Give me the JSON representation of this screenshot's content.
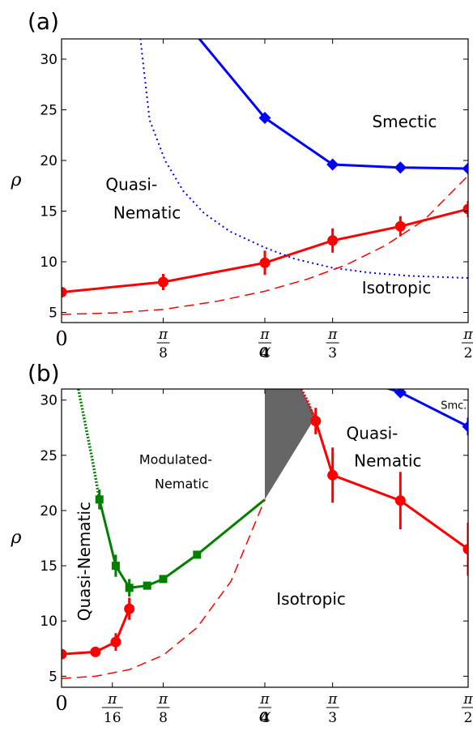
{
  "chart_data": [
    {
      "panel_label": "(a)",
      "type": "line",
      "xlabel": "α",
      "ylabel": "ρ",
      "xlim": [
        0,
        1.5708
      ],
      "ylim": [
        4,
        32
      ],
      "grid": false,
      "xticks": [
        {
          "value": 0,
          "label": "0"
        },
        {
          "value": 0.3927,
          "num": "π",
          "den": "8"
        },
        {
          "value": 0.7854,
          "num": "π",
          "den": "4"
        },
        {
          "value": 1.0472,
          "num": "π",
          "den": "3"
        },
        {
          "value": 1.5708,
          "num": "π",
          "den": "2"
        }
      ],
      "yticks": [
        5,
        10,
        15,
        20,
        25,
        30
      ],
      "series": [
        {
          "color": "#0000ff",
          "style": "solid",
          "marker": "diamond",
          "x": [
            0.5,
            0.7854,
            1.0472,
            1.309,
            1.5708
          ],
          "y": [
            33,
            24.2,
            19.6,
            19.3,
            19.2
          ],
          "marker_start": 1
        },
        {
          "color": "#ff0000",
          "style": "solid",
          "marker": "circle",
          "x": [
            0,
            0.3927,
            0.7854,
            1.0472,
            1.309,
            1.5708
          ],
          "y": [
            7.0,
            8.0,
            9.9,
            12.1,
            13.5,
            15.2
          ],
          "err": [
            0.3,
            0.8,
            1.2,
            1.2,
            1.0,
            0.8
          ]
        },
        {
          "color": "#0000ff",
          "style": "dotted",
          "marker": "none",
          "x": [
            0.3,
            0.34,
            0.4,
            0.47,
            0.55,
            0.65,
            0.7854,
            0.9,
            1.0472,
            1.2,
            1.35,
            1.5708
          ],
          "y": [
            33,
            24,
            20,
            17,
            14.8,
            13,
            11.4,
            10.3,
            9.4,
            8.9,
            8.6,
            8.4
          ]
        },
        {
          "color": "#ff0000",
          "style": "dashed",
          "marker": "none",
          "x": [
            0,
            0.2,
            0.3927,
            0.6,
            0.7854,
            0.95,
            1.1,
            1.25,
            1.4,
            1.5708
          ],
          "y": [
            4.8,
            4.95,
            5.3,
            6.1,
            7.1,
            8.3,
            9.7,
            11.6,
            14.1,
            18.5
          ]
        }
      ],
      "annotations": [
        {
          "text": "Smectic",
          "x": 1.2,
          "y": 23.3,
          "size": "region"
        },
        {
          "text": "Quasi-",
          "x": 0.17,
          "y": 17.1,
          "size": "region"
        },
        {
          "text": "Nematic",
          "x": 0.2,
          "y": 14.3,
          "size": "region"
        },
        {
          "text": "Isotropic",
          "x": 1.16,
          "y": 6.9,
          "size": "region"
        }
      ]
    },
    {
      "panel_label": "(b)",
      "type": "line",
      "xlabel": "α",
      "ylabel": "ρ",
      "xlim": [
        0,
        1.5708
      ],
      "ylim": [
        4,
        31
      ],
      "grid": false,
      "xticks": [
        {
          "value": 0,
          "label": "0"
        },
        {
          "value": 0.19635,
          "num": "π",
          "den": "16"
        },
        {
          "value": 0.3927,
          "num": "π",
          "den": "8"
        },
        {
          "value": 0.7854,
          "num": "π",
          "den": "4"
        },
        {
          "value": 1.0472,
          "num": "π",
          "den": "3"
        },
        {
          "value": 1.5708,
          "num": "π",
          "den": "2"
        }
      ],
      "yticks": [
        5,
        10,
        15,
        20,
        25,
        30
      ],
      "shaded_region": {
        "color": "#666666",
        "points": [
          [
            0.7854,
            31
          ],
          [
            0.9268,
            31
          ],
          [
            0.9818,
            28.5
          ],
          [
            0.7854,
            21
          ]
        ]
      },
      "series": [
        {
          "color": "#008000",
          "style": "dotted",
          "marker": "none",
          "x": [
            0.065,
            0.09,
            0.12,
            0.1463
          ],
          "y": [
            31,
            28,
            24.5,
            21
          ]
        },
        {
          "color": "#008000",
          "style": "solid",
          "marker": "square",
          "x": [
            0.1463,
            0.2094,
            0.2618,
            0.3307,
            0.3927,
            0.5236,
            0.7854
          ],
          "y": [
            21,
            15,
            13,
            13.2,
            13.8,
            16,
            21
          ],
          "err": [
            0.9,
            1.0,
            0.8,
            0,
            0,
            0,
            0
          ],
          "marker_end": 5
        },
        {
          "color": "#ff0000",
          "style": "solid",
          "marker": "circle",
          "x": [
            0,
            0.1309,
            0.2094,
            0.2618
          ],
          "y": [
            7,
            7.2,
            8.1,
            11.1
          ],
          "err": [
            0,
            0.3,
            0.8,
            1.0
          ]
        },
        {
          "color": "#ff0000",
          "style": "dotted",
          "marker": "none",
          "x": [
            0.9268,
            0.9502,
            0.9818
          ],
          "y": [
            31,
            29.9,
            28.1
          ]
        },
        {
          "color": "#ff0000",
          "style": "solid",
          "marker": "circle",
          "x": [
            0.9818,
            1.0472,
            1.309,
            1.5708
          ],
          "y": [
            28.1,
            23.2,
            20.9,
            16.5
          ],
          "err": [
            1.2,
            2.5,
            2.6,
            2.4
          ]
        },
        {
          "color": "#0000ff",
          "style": "solid",
          "marker": "diamond",
          "x": [
            1.16,
            1.309,
            1.5708
          ],
          "y": [
            31.8,
            30.7,
            27.6
          ],
          "err": [
            0,
            0,
            0.8
          ],
          "marker_start": 1
        },
        {
          "color": "#ff0000",
          "style": "dashed",
          "marker": "none",
          "x": [
            0,
            0.1309,
            0.2618,
            0.3927,
            0.5236,
            0.6545,
            0.7854
          ],
          "y": [
            4.8,
            5.0,
            5.6,
            6.9,
            9.4,
            13.6,
            21
          ]
        }
      ],
      "annotations": [
        {
          "text": "Modulated-",
          "x": 0.3,
          "y": 24.2,
          "size": "region-sm"
        },
        {
          "text": "Nematic",
          "x": 0.36,
          "y": 22.0,
          "size": "region-sm"
        },
        {
          "text": "Quasi-",
          "x": 1.1,
          "y": 26.5,
          "size": "region"
        },
        {
          "text": "Nematic",
          "x": 1.13,
          "y": 24.0,
          "size": "region"
        },
        {
          "text": "Smc.",
          "x": 1.465,
          "y": 29.2,
          "size": "region-xs"
        },
        {
          "text": "Isotropic",
          "x": 0.83,
          "y": 11.5,
          "size": "region"
        },
        {
          "text": "Quasi-Nematic",
          "x": 0.11,
          "y": 15.4,
          "size": "region",
          "rotate": -90
        }
      ]
    }
  ]
}
